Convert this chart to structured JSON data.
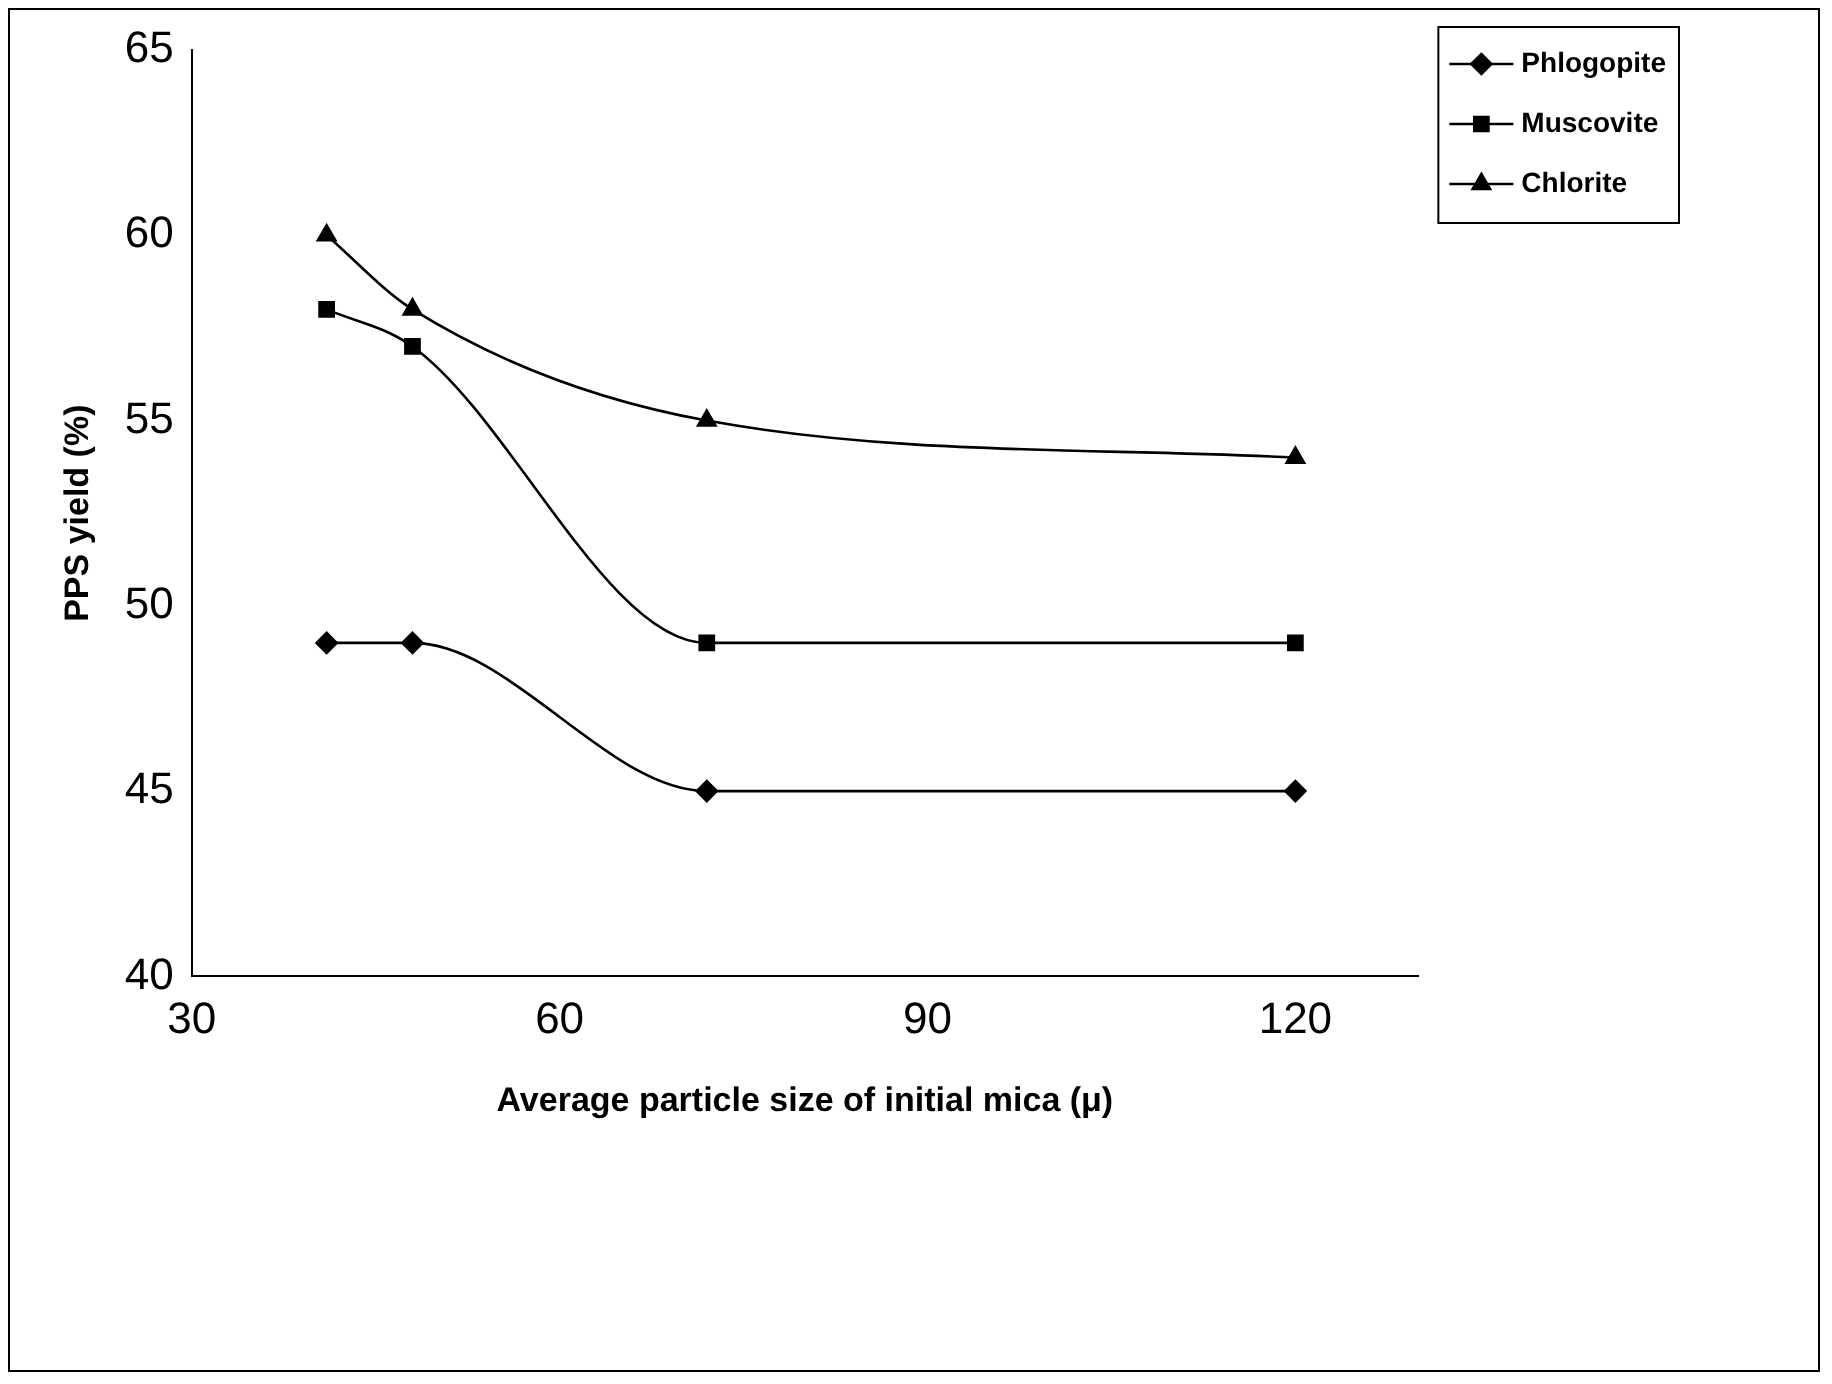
{
  "chart_data": {
    "type": "line",
    "xlabel": "Average particle size of initial mica (μ)",
    "ylabel": "PPS yield (%)",
    "x": [
      41,
      48,
      72,
      120
    ],
    "series": [
      {
        "name": "Phlogopite",
        "color": "#000000",
        "marker": "diamond",
        "values": [
          49,
          49,
          45,
          45
        ]
      },
      {
        "name": "Muscovite",
        "color": "#000000",
        "marker": "square",
        "values": [
          58,
          57,
          49,
          49
        ]
      },
      {
        "name": "Chlorite",
        "color": "#000000",
        "marker": "triangle",
        "values": [
          60,
          58,
          55,
          54
        ]
      }
    ],
    "xlim": [
      30,
      130
    ],
    "xticks": [
      30,
      60,
      90,
      120
    ],
    "ylim": [
      40,
      65
    ],
    "yticks": [
      40,
      45,
      50,
      55,
      60,
      65
    ],
    "grid": false,
    "legend": "top right",
    "line_style": "solid"
  }
}
